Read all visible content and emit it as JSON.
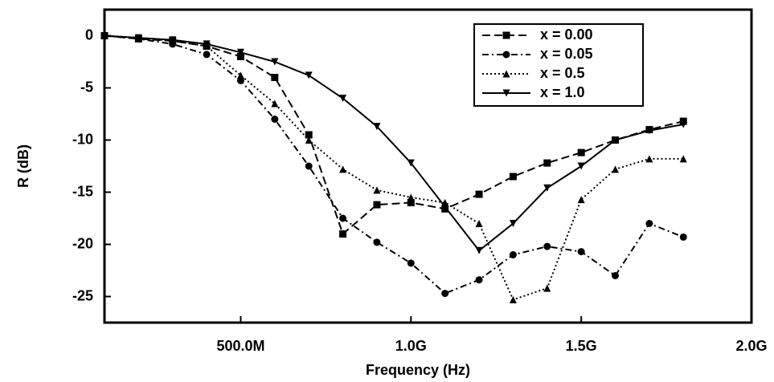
{
  "chart_data": {
    "type": "line",
    "xlabel": "Frequency (Hz)",
    "ylabel": "R (dB)",
    "x": [
      100000000,
      200000000,
      300000000,
      400000000,
      500000000,
      600000000,
      700000000,
      800000000,
      900000000,
      1000000000,
      1100000000,
      1200000000,
      1300000000,
      1400000000,
      1500000000,
      1600000000,
      1700000000,
      1800000000
    ],
    "xlim": [
      100000000,
      2000000000
    ],
    "xticks": [
      {
        "value": 500000000,
        "label": "500.0M"
      },
      {
        "value": 1000000000,
        "label": "1.0G"
      },
      {
        "value": 1500000000,
        "label": "1.5G"
      },
      {
        "value": 2000000000,
        "label": "2.0G"
      }
    ],
    "ylim": [
      -27.5,
      2.5
    ],
    "yticks": [
      0,
      -5,
      -10,
      -15,
      -20,
      -25
    ],
    "legend": "upper right",
    "series": [
      {
        "name": "x = 0.00",
        "color": "#000000",
        "dash": "10,5",
        "marker": "square",
        "values": [
          0,
          -0.3,
          -0.5,
          -1,
          -2,
          -4,
          -9.5,
          -19,
          -16.2,
          -16,
          -16.6,
          -15.2,
          -13.5,
          -12.2,
          -11.2,
          -10,
          -9,
          -8.2
        ]
      },
      {
        "name": "x = 0.05",
        "color": "#000000",
        "dash": "8,4,2,4",
        "marker": "circle",
        "values": [
          0,
          -0.3,
          -0.8,
          -1.8,
          -4.3,
          -8,
          -12.5,
          -17.5,
          -19.8,
          -21.8,
          -24.7,
          -23.4,
          -21,
          -20.2,
          -20.7,
          -23,
          -18,
          -19.3
        ]
      },
      {
        "name": "x = 0.5",
        "color": "#000000",
        "dash": "2,3",
        "marker": "triangle-up",
        "values": [
          0,
          -0.2,
          -0.5,
          -1,
          -3.8,
          -6.5,
          -10,
          -12.8,
          -14.8,
          -15.5,
          -16,
          -18,
          -25.3,
          -24.2,
          -15.7,
          -12.8,
          -11.8,
          -11.8
        ]
      },
      {
        "name": "x = 1.0",
        "color": "#000000",
        "dash": "none",
        "marker": "triangle-down",
        "values": [
          0,
          -0.2,
          -0.4,
          -0.8,
          -1.6,
          -2.5,
          -3.8,
          -6,
          -8.7,
          -12.2,
          -16.4,
          -20.6,
          -18,
          -14.6,
          -12.5,
          -10,
          -9.1,
          -8.5
        ]
      }
    ]
  }
}
